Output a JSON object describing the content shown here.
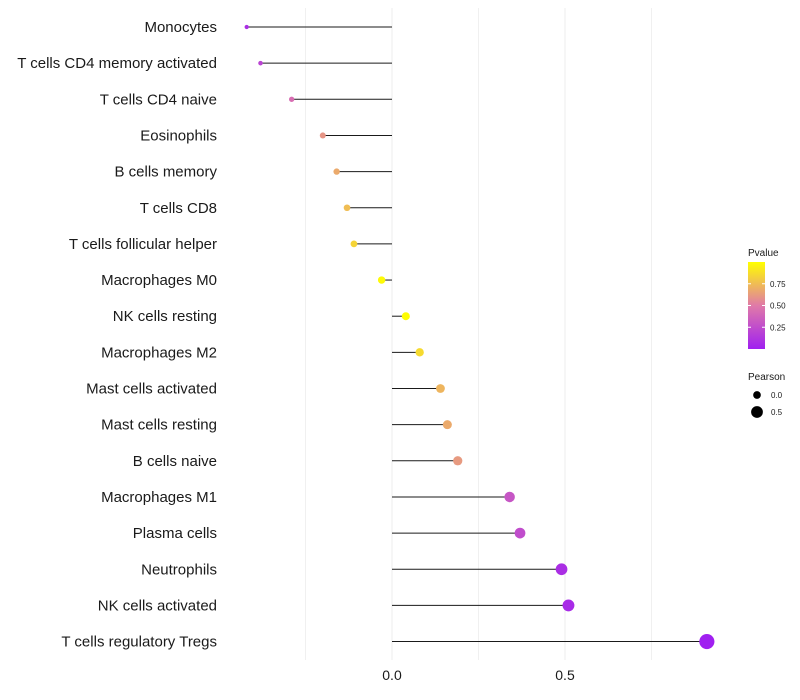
{
  "chart_data": {
    "type": "lollipop",
    "title": "",
    "xlabel": "",
    "ylabel": "",
    "xlim": [
      -0.5,
      0.95
    ],
    "x_ticks": [
      0.0,
      0.5
    ],
    "x_tick_labels": [
      "0.0",
      "0.5"
    ],
    "grid": true,
    "categories": [
      "Monocytes",
      "T cells CD4 memory activated",
      "T cells CD4 naive",
      "Eosinophils",
      "B cells memory",
      "T cells CD8",
      "T cells follicular helper",
      "Macrophages M0",
      "NK cells resting",
      "Macrophages M2",
      "Mast cells activated",
      "Mast cells resting",
      "B cells naive",
      "Macrophages M1",
      "Plasma cells",
      "Neutrophils",
      "NK cells activated",
      "T cells regulatory  Tregs"
    ],
    "series": [
      {
        "name": "Pearson",
        "values": [
          -0.42,
          -0.38,
          -0.29,
          -0.2,
          -0.16,
          -0.13,
          -0.11,
          -0.03,
          0.04,
          0.08,
          0.14,
          0.16,
          0.19,
          0.34,
          0.37,
          0.49,
          0.51,
          0.91
        ]
      },
      {
        "name": "Pvalue",
        "values": [
          0.08,
          0.2,
          0.43,
          0.6,
          0.68,
          0.75,
          0.84,
          0.98,
          0.99,
          0.86,
          0.72,
          0.68,
          0.62,
          0.3,
          0.25,
          0.08,
          0.06,
          0.001
        ]
      }
    ],
    "legend_color": {
      "title": "Pvalue",
      "ticks": [
        0.25,
        0.5,
        0.75
      ],
      "tick_labels": [
        "0.25",
        "0.50",
        "0.75"
      ],
      "range": [
        0,
        1
      ],
      "low_color": "#a020f0",
      "mid_color": "#e07aa8",
      "high_color": "#ffff00"
    },
    "legend_size": {
      "title": "Pearson",
      "entries": [
        {
          "label": "0.0",
          "value": 0.0
        },
        {
          "label": "0.5",
          "value": 0.5
        }
      ]
    },
    "legend_position": "right"
  }
}
